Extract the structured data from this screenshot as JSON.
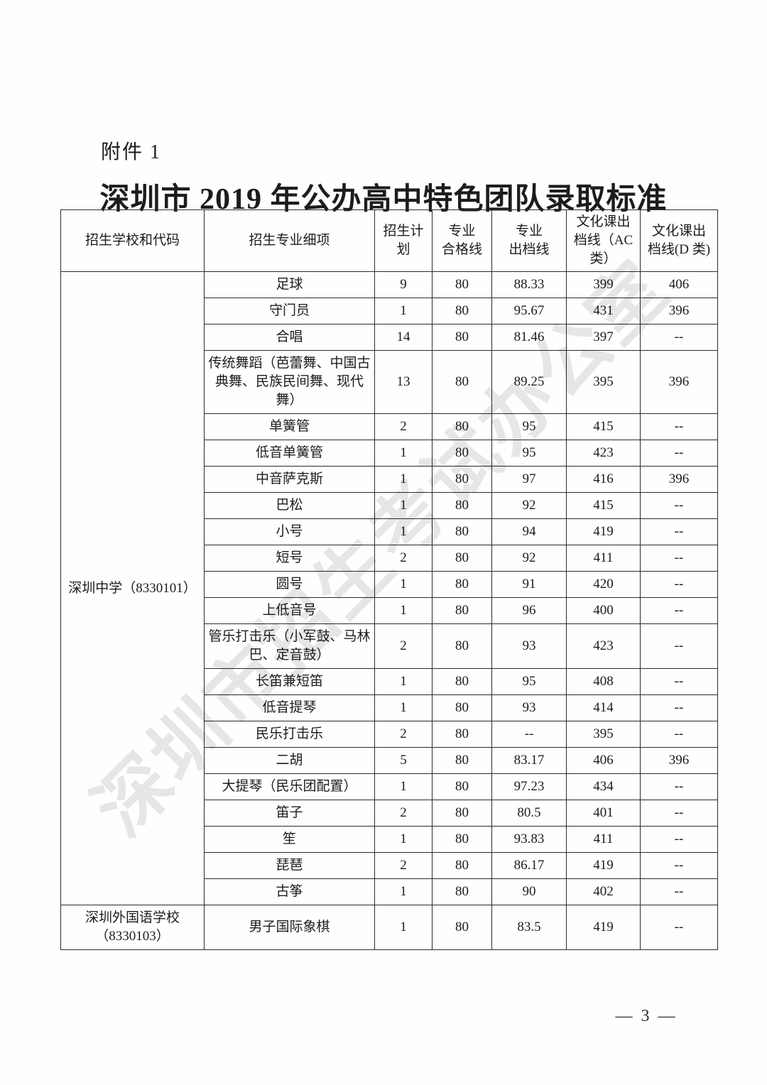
{
  "page": {
    "attachment_label": "附件 1",
    "title": "深圳市 2019 年公办高中特色团队录取标准",
    "page_number": "— 3 —",
    "watermark": "深圳市招生考试办公室"
  },
  "table": {
    "headers": [
      "招生学校和代码",
      "招生专业细项",
      "招生计\n划",
      "专业\n合格线",
      "专业\n出档线",
      "文化课出\n档线（AC\n类）",
      "文化课出\n档线(D 类)"
    ],
    "schools": [
      {
        "name": "深圳中学（8330101）",
        "rows": [
          {
            "item": "足球",
            "plan": "9",
            "qualify": "80",
            "major_line": "88.33",
            "ac_line": "399",
            "d_line": "406"
          },
          {
            "item": "守门员",
            "plan": "1",
            "qualify": "80",
            "major_line": "95.67",
            "ac_line": "431",
            "d_line": "396"
          },
          {
            "item": "合唱",
            "plan": "14",
            "qualify": "80",
            "major_line": "81.46",
            "ac_line": "397",
            "d_line": "--"
          },
          {
            "item": "传统舞蹈（芭蕾舞、中国古典舞、民族民间舞、现代舞）",
            "plan": "13",
            "qualify": "80",
            "major_line": "89.25",
            "ac_line": "395",
            "d_line": "396"
          },
          {
            "item": "单簧管",
            "plan": "2",
            "qualify": "80",
            "major_line": "95",
            "ac_line": "415",
            "d_line": "--"
          },
          {
            "item": "低音单簧管",
            "plan": "1",
            "qualify": "80",
            "major_line": "95",
            "ac_line": "423",
            "d_line": "--"
          },
          {
            "item": "中音萨克斯",
            "plan": "1",
            "qualify": "80",
            "major_line": "97",
            "ac_line": "416",
            "d_line": "396"
          },
          {
            "item": "巴松",
            "plan": "1",
            "qualify": "80",
            "major_line": "92",
            "ac_line": "415",
            "d_line": "--"
          },
          {
            "item": "小号",
            "plan": "1",
            "qualify": "80",
            "major_line": "94",
            "ac_line": "419",
            "d_line": "--"
          },
          {
            "item": "短号",
            "plan": "2",
            "qualify": "80",
            "major_line": "92",
            "ac_line": "411",
            "d_line": "--"
          },
          {
            "item": "圆号",
            "plan": "1",
            "qualify": "80",
            "major_line": "91",
            "ac_line": "420",
            "d_line": "--"
          },
          {
            "item": "上低音号",
            "plan": "1",
            "qualify": "80",
            "major_line": "96",
            "ac_line": "400",
            "d_line": "--"
          },
          {
            "item": "管乐打击乐（小军鼓、马林巴、定音鼓）",
            "plan": "2",
            "qualify": "80",
            "major_line": "93",
            "ac_line": "423",
            "d_line": "--"
          },
          {
            "item": "长笛兼短笛",
            "plan": "1",
            "qualify": "80",
            "major_line": "95",
            "ac_line": "408",
            "d_line": "--"
          },
          {
            "item": "低音提琴",
            "plan": "1",
            "qualify": "80",
            "major_line": "93",
            "ac_line": "414",
            "d_line": "--"
          },
          {
            "item": "民乐打击乐",
            "plan": "2",
            "qualify": "80",
            "major_line": "--",
            "ac_line": "395",
            "d_line": "--"
          },
          {
            "item": "二胡",
            "plan": "5",
            "qualify": "80",
            "major_line": "83.17",
            "ac_line": "406",
            "d_line": "396"
          },
          {
            "item": "大提琴（民乐团配置）",
            "plan": "1",
            "qualify": "80",
            "major_line": "97.23",
            "ac_line": "434",
            "d_line": "--"
          },
          {
            "item": "笛子",
            "plan": "2",
            "qualify": "80",
            "major_line": "80.5",
            "ac_line": "401",
            "d_line": "--"
          },
          {
            "item": "笙",
            "plan": "1",
            "qualify": "80",
            "major_line": "93.83",
            "ac_line": "411",
            "d_line": "--"
          },
          {
            "item": "琵琶",
            "plan": "2",
            "qualify": "80",
            "major_line": "86.17",
            "ac_line": "419",
            "d_line": "--"
          },
          {
            "item": "古筝",
            "plan": "1",
            "qualify": "80",
            "major_line": "90",
            "ac_line": "402",
            "d_line": "--"
          }
        ]
      },
      {
        "name": "深圳外国语学校\n（8330103）",
        "rows": [
          {
            "item": "男子国际象棋",
            "plan": "1",
            "qualify": "80",
            "major_line": "83.5",
            "ac_line": "419",
            "d_line": "--"
          }
        ]
      }
    ]
  }
}
